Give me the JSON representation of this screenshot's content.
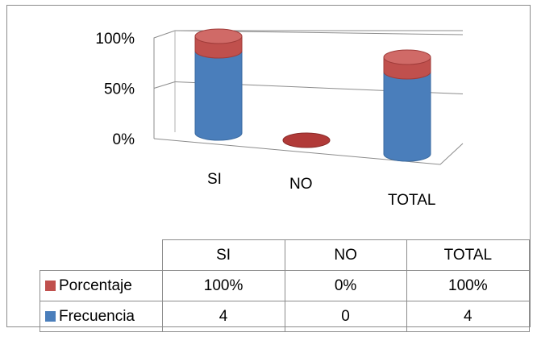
{
  "chart_data": {
    "type": "bar",
    "style": "3d-stacked-100-cylinder",
    "categories": [
      "SI",
      "NO",
      "TOTAL"
    ],
    "series": [
      {
        "name": "Frecuencia",
        "color": "#4a7ebb",
        "display": [
          "4",
          "0",
          "4"
        ],
        "values": [
          4,
          0,
          4
        ]
      },
      {
        "name": "Porcentaje",
        "color": "#c0504d",
        "display": [
          "100%",
          "0%",
          "100%"
        ],
        "values": [
          100,
          0,
          100
        ]
      }
    ],
    "yticks": [
      "0%",
      "50%",
      "100%"
    ],
    "ylim": [
      0,
      100
    ],
    "grid": true,
    "legend": "table-below"
  }
}
